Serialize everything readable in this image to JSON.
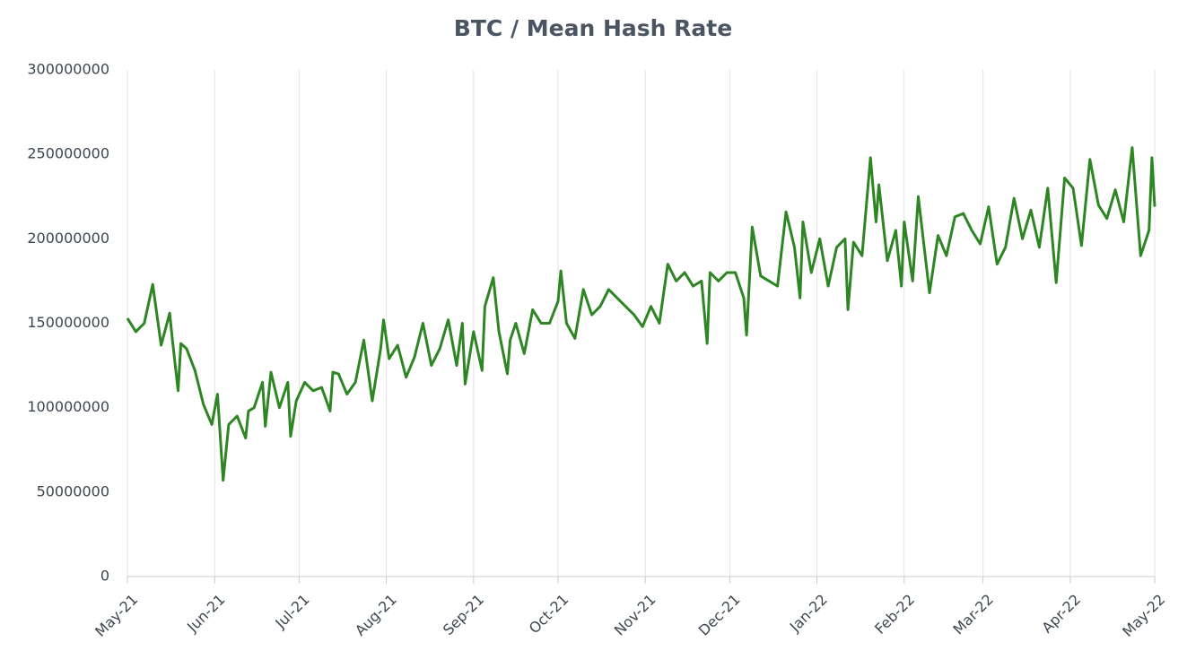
{
  "chart_data": {
    "type": "line",
    "title": "BTC / Mean Hash Rate",
    "x": [
      0,
      3,
      6,
      9,
      12,
      15,
      16,
      18,
      19,
      21,
      24,
      27,
      30,
      32,
      34,
      36,
      39,
      42,
      43,
      45,
      48,
      49,
      51,
      54,
      57,
      58,
      60,
      63,
      66,
      69,
      72,
      73,
      75,
      78,
      81,
      84,
      87,
      90,
      91,
      93,
      96,
      99,
      102,
      105,
      108,
      111,
      114,
      117,
      119,
      120,
      123,
      126,
      127,
      130,
      132,
      135,
      136,
      138,
      141,
      144,
      147,
      150,
      153,
      154,
      156,
      159,
      162,
      165,
      168,
      171,
      174,
      177,
      180,
      183,
      186,
      189,
      192,
      195,
      198,
      201,
      204,
      206,
      207,
      210,
      213,
      216,
      219,
      220,
      222,
      225,
      228,
      231,
      234,
      237,
      239,
      240,
      243,
      246,
      249,
      252,
      255,
      256,
      258,
      261,
      264,
      266,
      267,
      270,
      273,
      275,
      276,
      279,
      281,
      285,
      288,
      291,
      294,
      297,
      300,
      303,
      306,
      309,
      312,
      315,
      318,
      321,
      324,
      327,
      330,
      333,
      336,
      339,
      342,
      345,
      348,
      351,
      354,
      357,
      360,
      363,
      364,
      365
    ],
    "series": [
      {
        "name": "Mean Hash Rate",
        "color": "#2e8523",
        "values": [
          153000000,
          145000000,
          150000000,
          173000000,
          137000000,
          156000000,
          140000000,
          110000000,
          138000000,
          135000000,
          122000000,
          102000000,
          90000000,
          108000000,
          57000000,
          90000000,
          95000000,
          82000000,
          98000000,
          100000000,
          115000000,
          89000000,
          121000000,
          100000000,
          115000000,
          83000000,
          104000000,
          115000000,
          110000000,
          112000000,
          98000000,
          121000000,
          120000000,
          108000000,
          115000000,
          140000000,
          104000000,
          135000000,
          152000000,
          129000000,
          137000000,
          118000000,
          130000000,
          150000000,
          125000000,
          135000000,
          152000000,
          125000000,
          150000000,
          114000000,
          145000000,
          122000000,
          160000000,
          177000000,
          145000000,
          120000000,
          140000000,
          150000000,
          132000000,
          158000000,
          150000000,
          150000000,
          163000000,
          181000000,
          150000000,
          141000000,
          170000000,
          155000000,
          160000000,
          170000000,
          165000000,
          160000000,
          155000000,
          148000000,
          160000000,
          150000000,
          185000000,
          175000000,
          180000000,
          172000000,
          175000000,
          138000000,
          180000000,
          175000000,
          180000000,
          180000000,
          165000000,
          143000000,
          207000000,
          178000000,
          175000000,
          172000000,
          216000000,
          195000000,
          165000000,
          210000000,
          180000000,
          200000000,
          172000000,
          195000000,
          200000000,
          158000000,
          198000000,
          190000000,
          248000000,
          210000000,
          232000000,
          187000000,
          205000000,
          172000000,
          210000000,
          175000000,
          225000000,
          168000000,
          202000000,
          190000000,
          213000000,
          215000000,
          205000000,
          197000000,
          219000000,
          185000000,
          195000000,
          224000000,
          200000000,
          217000000,
          195000000,
          230000000,
          174000000,
          236000000,
          230000000,
          196000000,
          247000000,
          220000000,
          212000000,
          229000000,
          210000000,
          254000000,
          190000000,
          205000000,
          248000000,
          219000000
        ]
      }
    ],
    "xlim": [
      0,
      365
    ],
    "xticks": [
      {
        "value": 0,
        "label": "May-21"
      },
      {
        "value": 31,
        "label": "Jun-21"
      },
      {
        "value": 61,
        "label": "Jul-21"
      },
      {
        "value": 92,
        "label": "Aug-21"
      },
      {
        "value": 123,
        "label": "Sep-21"
      },
      {
        "value": 153,
        "label": "Oct-21"
      },
      {
        "value": 184,
        "label": "Nov-21"
      },
      {
        "value": 214,
        "label": "Dec-21"
      },
      {
        "value": 245,
        "label": "Jan-22"
      },
      {
        "value": 276,
        "label": "Feb-22"
      },
      {
        "value": 304,
        "label": "Mar-22"
      },
      {
        "value": 335,
        "label": "Apr-22"
      },
      {
        "value": 365,
        "label": "May-22"
      }
    ],
    "ylim": [
      0,
      300000000
    ],
    "yticks": [
      0,
      50000000,
      100000000,
      150000000,
      200000000,
      250000000,
      300000000
    ],
    "grid": "x"
  }
}
